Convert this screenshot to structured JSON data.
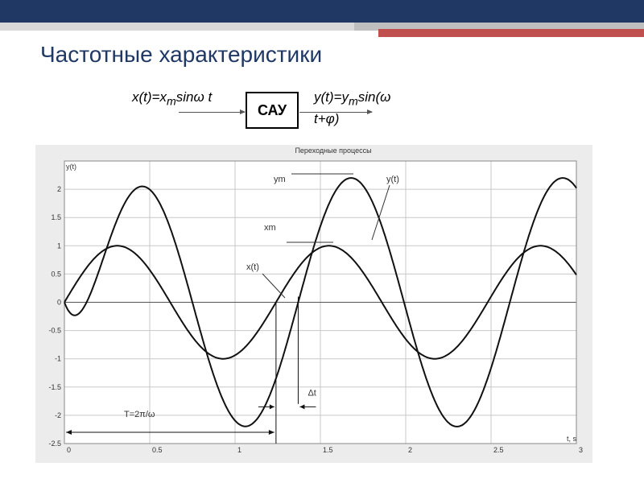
{
  "page": {
    "title": "Частотные характеристики"
  },
  "diagram": {
    "input_formula": {
      "base": "x(t)=x",
      "sub": "m",
      "tail": "sinω t"
    },
    "block_label": "САУ",
    "output_formula": {
      "base": "y(t)=y",
      "sub": "m",
      "tail": "sin(ω t+φ)"
    }
  },
  "chart_data": {
    "type": "line",
    "title": "Переходные процессы",
    "ylabel": "y(t)",
    "xlabel": "t, s",
    "xlim": [
      0,
      3
    ],
    "ylim": [
      -2.5,
      2.5
    ],
    "x_ticks": [
      "0",
      "0.5",
      "1",
      "1.5",
      "2",
      "2.5",
      "3"
    ],
    "y_ticks": [
      "2",
      "1.5",
      "1",
      "0.5",
      "0",
      "-0.5",
      "-1",
      "-1.5",
      "-2",
      "-2.5"
    ],
    "grid": true,
    "series": [
      {
        "name": "x(t)",
        "amplitude": 1.0,
        "period": 1.24,
        "phase_shift": 0.0
      },
      {
        "name": "y(t)",
        "amplitude": 2.2,
        "period": 1.24,
        "phase_shift": 0.13
      }
    ],
    "annotations": {
      "ym": "ym",
      "xm": "xm",
      "yt": "y(t)",
      "xt": "x(t)",
      "period": "T=2π/ω",
      "delta_t": "Δt"
    }
  }
}
